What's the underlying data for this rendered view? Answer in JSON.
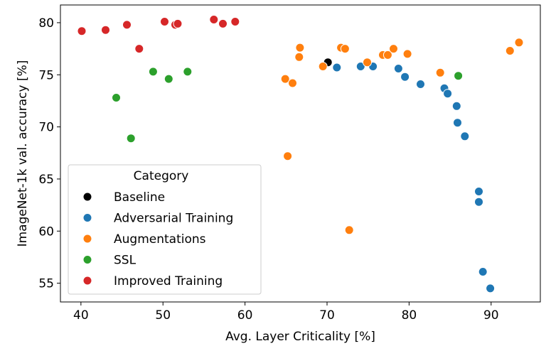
{
  "chart_data": {
    "type": "scatter",
    "xlabel": "Avg. Layer Criticality [%]",
    "ylabel": "ImageNet-1k val. accuracy [%]",
    "xlim": [
      37.5,
      96.0
    ],
    "ylim": [
      53.2,
      81.7
    ],
    "xticks": [
      40,
      50,
      60,
      70,
      80,
      90
    ],
    "yticks": [
      55,
      60,
      65,
      70,
      75,
      80
    ],
    "grid": false,
    "legend": {
      "title": "Category",
      "placement": "lower-left"
    },
    "series": [
      {
        "name": "Baseline",
        "color": "#000000",
        "points": [
          [
            70.1,
            76.2
          ]
        ]
      },
      {
        "name": "Adversarial Training",
        "color": "#1f77b4",
        "points": [
          [
            71.2,
            75.7
          ],
          [
            74.1,
            75.8
          ],
          [
            75.6,
            75.8
          ],
          [
            78.7,
            75.6
          ],
          [
            79.5,
            74.8
          ],
          [
            81.4,
            74.1
          ],
          [
            84.3,
            73.7
          ],
          [
            84.7,
            73.2
          ],
          [
            85.8,
            72.0
          ],
          [
            85.9,
            70.4
          ],
          [
            86.8,
            69.1
          ],
          [
            88.5,
            63.8
          ],
          [
            88.5,
            62.8
          ],
          [
            89.0,
            56.1
          ],
          [
            89.9,
            54.5
          ]
        ]
      },
      {
        "name": "Augmentations",
        "color": "#ff7f0e",
        "points": [
          [
            64.9,
            74.6
          ],
          [
            65.2,
            67.2
          ],
          [
            65.8,
            74.2
          ],
          [
            66.6,
            76.7
          ],
          [
            66.7,
            77.6
          ],
          [
            69.5,
            75.8
          ],
          [
            71.7,
            77.6
          ],
          [
            72.2,
            77.5
          ],
          [
            72.7,
            60.1
          ],
          [
            74.9,
            76.2
          ],
          [
            76.8,
            76.9
          ],
          [
            77.4,
            76.9
          ],
          [
            78.1,
            77.5
          ],
          [
            79.8,
            77.0
          ],
          [
            83.8,
            75.2
          ],
          [
            92.3,
            77.3
          ],
          [
            93.4,
            78.1
          ]
        ]
      },
      {
        "name": "SSL",
        "color": "#2ca02c",
        "points": [
          [
            44.3,
            72.8
          ],
          [
            46.1,
            68.9
          ],
          [
            48.8,
            75.3
          ],
          [
            50.7,
            74.6
          ],
          [
            53.0,
            75.3
          ],
          [
            86.0,
            74.9
          ]
        ]
      },
      {
        "name": "Improved Training",
        "color": "#d62728",
        "points": [
          [
            40.1,
            79.2
          ],
          [
            43.0,
            79.3
          ],
          [
            45.6,
            79.8
          ],
          [
            47.1,
            77.5
          ],
          [
            50.2,
            80.1
          ],
          [
            51.5,
            79.8
          ],
          [
            51.8,
            79.9
          ],
          [
            56.2,
            80.3
          ],
          [
            57.3,
            79.9
          ],
          [
            58.8,
            80.1
          ]
        ]
      }
    ]
  }
}
